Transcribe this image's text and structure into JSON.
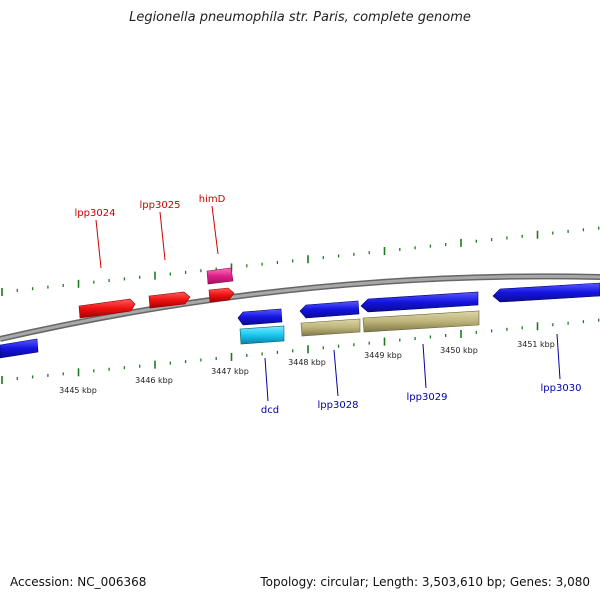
{
  "title": "Legionella pneumophila str. Paris, complete genome",
  "footer": {
    "accession": "Accession: NC_006368",
    "summary": "Topology: circular; Length: 3,503,610 bp; Genes: 3,080"
  },
  "colors": {
    "backbone": "#8a8a8a",
    "tick": "#1e7a1e",
    "forward_label": "#cc0000",
    "reverse_label": "#0000aa",
    "red_gene": "#ee1111",
    "pink_gene": "#e0208a",
    "blue_gene": "#1414e0",
    "cyan_gene": "#18c8f0",
    "olive_gene": "#bdb47a"
  },
  "scale_labels": [
    "3445 kbp",
    "3446 kbp",
    "3447 kbp",
    "3448 kbp",
    "3449 kbp",
    "3450 kbp",
    "3451 kbp"
  ],
  "genes_forward": [
    {
      "label": "lpp3024",
      "color": "red"
    },
    {
      "label": "lpp3025",
      "color": "red"
    },
    {
      "label": "himD",
      "color": "red"
    },
    {
      "label": "",
      "color": "pink"
    }
  ],
  "genes_reverse": [
    {
      "label": "",
      "color": "blue"
    },
    {
      "label": "dcd",
      "color": "blue"
    },
    {
      "label": "",
      "color": "cyan"
    },
    {
      "label": "lpp3028",
      "color": "blue"
    },
    {
      "label": "",
      "color": "olive"
    },
    {
      "label": "lpp3029",
      "color": "blue"
    },
    {
      "label": "",
      "color": "olive"
    },
    {
      "label": "lpp3030",
      "color": "blue"
    }
  ]
}
